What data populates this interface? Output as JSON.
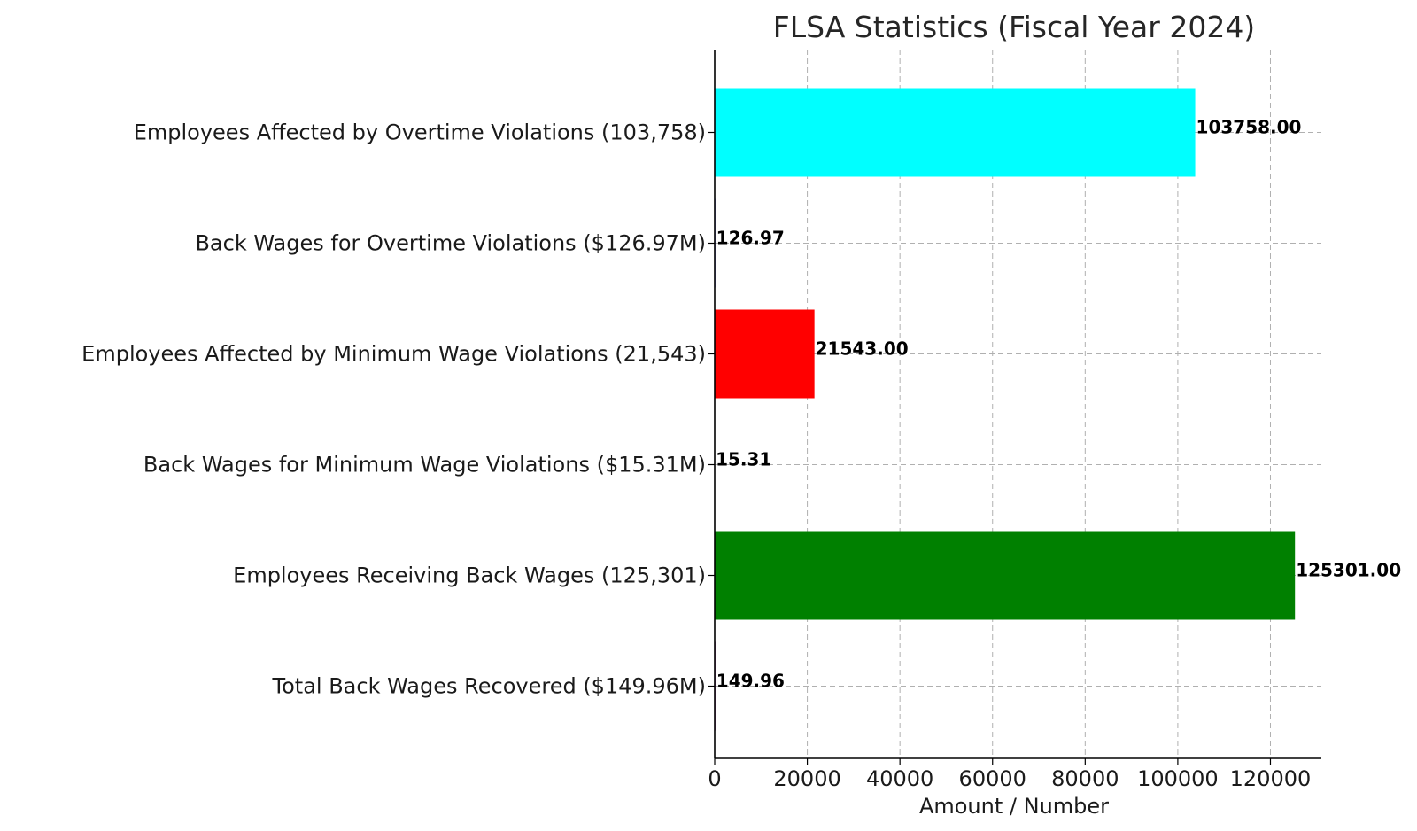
{
  "chart_data": {
    "type": "bar",
    "orientation": "horizontal",
    "title": "FLSA Statistics (Fiscal Year 2024)",
    "xlabel": "Amount / Number",
    "ylabel": "",
    "xlim": [
      0,
      131000
    ],
    "xticks": [
      0,
      20000,
      40000,
      60000,
      80000,
      100000,
      120000
    ],
    "xtick_labels": [
      "0",
      "20000",
      "40000",
      "60000",
      "80000",
      "100000",
      "120000"
    ],
    "grid": true,
    "categories": [
      "Employees Affected by Overtime Violations (103,758)",
      "Back Wages for Overtime Violations ($126.97M)",
      "Employees Affected by Minimum Wage Violations (21,543)",
      "Back Wages for Minimum Wage Violations ($15.31M)",
      "Employees Receiving Back Wages (125,301)",
      "Total Back Wages Recovered ($149.96M)"
    ],
    "values": [
      103758,
      126.97,
      21543,
      15.31,
      125301,
      149.96
    ],
    "value_labels": [
      "103758.00",
      "126.97",
      "21543.00",
      "15.31",
      "125301.00",
      "149.96"
    ],
    "colors": [
      "#00ffff",
      "#0000ff",
      "#ff0000",
      "#ff00ff",
      "#008000",
      "#800080"
    ]
  }
}
